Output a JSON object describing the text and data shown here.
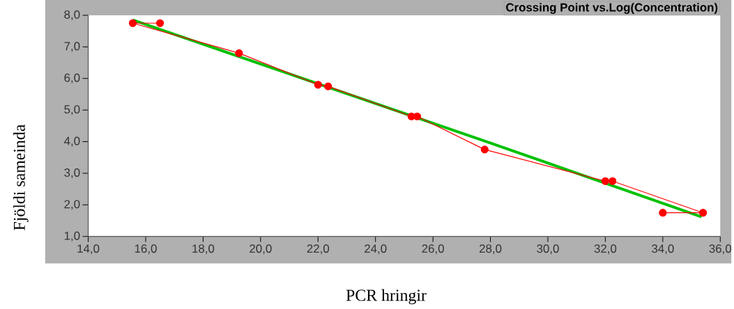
{
  "chart_data": {
    "type": "line",
    "title": "Crossing Point vs.Log(Concentration)",
    "xlabel": "PCR hringir",
    "ylabel": "Fjöldi sameinda",
    "xlim": [
      14,
      36
    ],
    "ylim": [
      1,
      8
    ],
    "xticks": [
      {
        "value": 14,
        "label": "14,0"
      },
      {
        "value": 16,
        "label": "16,0"
      },
      {
        "value": 18,
        "label": "18,0"
      },
      {
        "value": 20,
        "label": "20,0"
      },
      {
        "value": 22,
        "label": "22,0"
      },
      {
        "value": 24,
        "label": "24,0"
      },
      {
        "value": 26,
        "label": "26,0"
      },
      {
        "value": 28,
        "label": "28,0"
      },
      {
        "value": 30,
        "label": "30,0"
      },
      {
        "value": 32,
        "label": "32,0"
      },
      {
        "value": 34,
        "label": "34,0"
      },
      {
        "value": 36,
        "label": "36,0"
      }
    ],
    "yticks": [
      {
        "value": 1,
        "label": "1,0"
      },
      {
        "value": 2,
        "label": "2,0"
      },
      {
        "value": 3,
        "label": "3,0"
      },
      {
        "value": 4,
        "label": "4,0"
      },
      {
        "value": 5,
        "label": "5,0"
      },
      {
        "value": 6,
        "label": "6,0"
      },
      {
        "value": 7,
        "label": "7,0"
      },
      {
        "value": 8,
        "label": "8,0"
      }
    ],
    "grid": false,
    "series": [
      {
        "color": "#00c000",
        "marker": "none",
        "x": [
          15.55,
          27.8,
          35.35
        ],
        "values": [
          7.85,
          4.02,
          1.62
        ]
      },
      {
        "color": "#ff0000",
        "marker": "circle",
        "x": [
          16.5,
          15.55,
          19.25,
          22.0,
          22.35,
          25.25,
          25.45,
          27.8,
          32.0,
          32.25,
          35.4,
          34.0
        ],
        "values": [
          7.75,
          7.75,
          6.8,
          5.8,
          5.75,
          4.8,
          4.8,
          3.75,
          2.75,
          2.75,
          1.75,
          1.75
        ]
      }
    ]
  }
}
